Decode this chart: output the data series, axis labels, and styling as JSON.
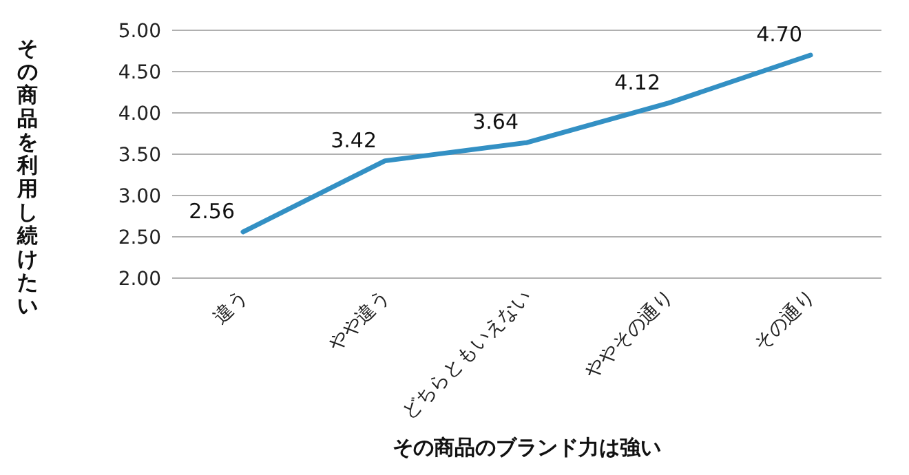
{
  "chart_data": {
    "type": "line",
    "categories": [
      "違う",
      "やや違う",
      "どちらともいえない",
      "ややその通り",
      "その通り"
    ],
    "values": [
      2.56,
      3.42,
      3.64,
      4.12,
      4.7
    ],
    "color": "#3390c4",
    "ylim": [
      2,
      5
    ],
    "yticks": [
      {
        "value": 2,
        "label": "2.00"
      },
      {
        "value": 2.5,
        "label": "2.50"
      },
      {
        "value": 3,
        "label": "3.00"
      },
      {
        "value": 3.5,
        "label": "3.50"
      },
      {
        "value": 4,
        "label": "4.00"
      },
      {
        "value": 4.5,
        "label": "4.50"
      },
      {
        "value": 5,
        "label": "5.00"
      }
    ],
    "value_labels": [
      "2.56",
      "3.42",
      "3.64",
      "4.12",
      "4.70"
    ],
    "grid": "y",
    "xlabel": "その商品のブランド力は強い",
    "ylabel": "その商品を利用し続けたい"
  }
}
